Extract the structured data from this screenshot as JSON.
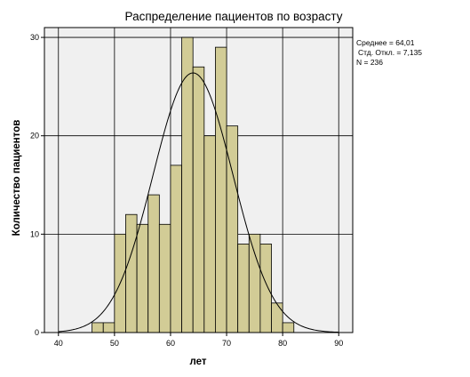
{
  "chart_data": {
    "type": "bar",
    "subtype": "histogram",
    "title": "Распределение пациентов по возрасту",
    "xlabel": "лет",
    "ylabel": "Количество пациентов",
    "xlim": [
      37.5,
      92.5
    ],
    "ylim": [
      0,
      31
    ],
    "x_ticks": [
      40,
      50,
      60,
      70,
      80,
      90
    ],
    "y_ticks": [
      0,
      10,
      20,
      30
    ],
    "grid": true,
    "bin_width": 2,
    "bins": [
      {
        "start": 46,
        "value": 1
      },
      {
        "start": 48,
        "value": 1
      },
      {
        "start": 50,
        "value": 10
      },
      {
        "start": 52,
        "value": 12
      },
      {
        "start": 54,
        "value": 11
      },
      {
        "start": 56,
        "value": 14
      },
      {
        "start": 58,
        "value": 11
      },
      {
        "start": 60,
        "value": 17
      },
      {
        "start": 62,
        "value": 30
      },
      {
        "start": 64,
        "value": 27
      },
      {
        "start": 66,
        "value": 20
      },
      {
        "start": 68,
        "value": 29
      },
      {
        "start": 70,
        "value": 21
      },
      {
        "start": 72,
        "value": 9
      },
      {
        "start": 74,
        "value": 10
      },
      {
        "start": 76,
        "value": 9
      },
      {
        "start": 78,
        "value": 3
      },
      {
        "start": 80,
        "value": 1
      }
    ],
    "normal_curve": {
      "mean": 64.01,
      "sd": 7.135,
      "n": 236
    },
    "stats_text": [
      "Среднее = 64,01",
      "Стд. Откл. = 7,135",
      "N = 236"
    ],
    "colors": {
      "bar_fill": "#d2cc96",
      "bar_stroke": "#000000",
      "plot_bg": "#f0f0f0",
      "grid": "#000000",
      "curve": "#000000"
    }
  }
}
